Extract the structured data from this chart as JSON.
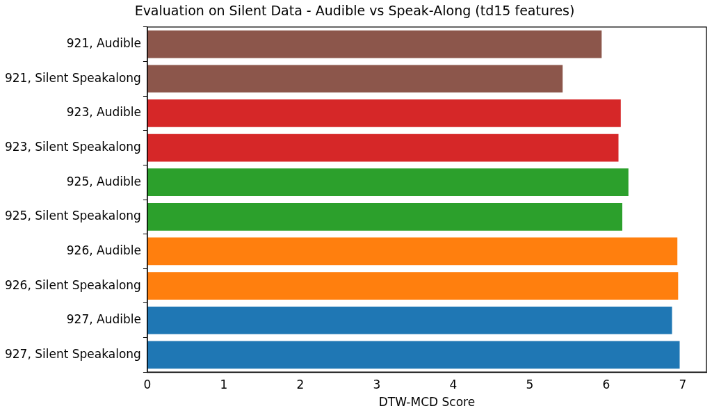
{
  "chart_data": {
    "type": "bar",
    "orientation": "horizontal",
    "title": "Evaluation on Silent Data - Audible vs Speak-Along (td15 features)",
    "xlabel": "DTW-MCD Score",
    "categories": [
      "921, Audible",
      "921, Silent Speakalong",
      "923, Audible",
      "923, Silent Speakalong",
      "925, Audible",
      "925, Silent Speakalong",
      "926, Audible",
      "926, Silent Speakalong",
      "927, Audible",
      "927, Silent Speakalong"
    ],
    "values": [
      5.94,
      5.43,
      6.19,
      6.16,
      6.29,
      6.21,
      6.93,
      6.94,
      6.86,
      6.96
    ],
    "colors": [
      "#8c564b",
      "#8c564b",
      "#d62728",
      "#d62728",
      "#2ca02c",
      "#2ca02c",
      "#ff7f0e",
      "#ff7f0e",
      "#1f77b4",
      "#1f77b4"
    ],
    "xlim": [
      0,
      7.31
    ],
    "xticks": [
      0,
      1,
      2,
      3,
      4,
      5,
      6,
      7
    ],
    "grid": false,
    "legend": false
  }
}
